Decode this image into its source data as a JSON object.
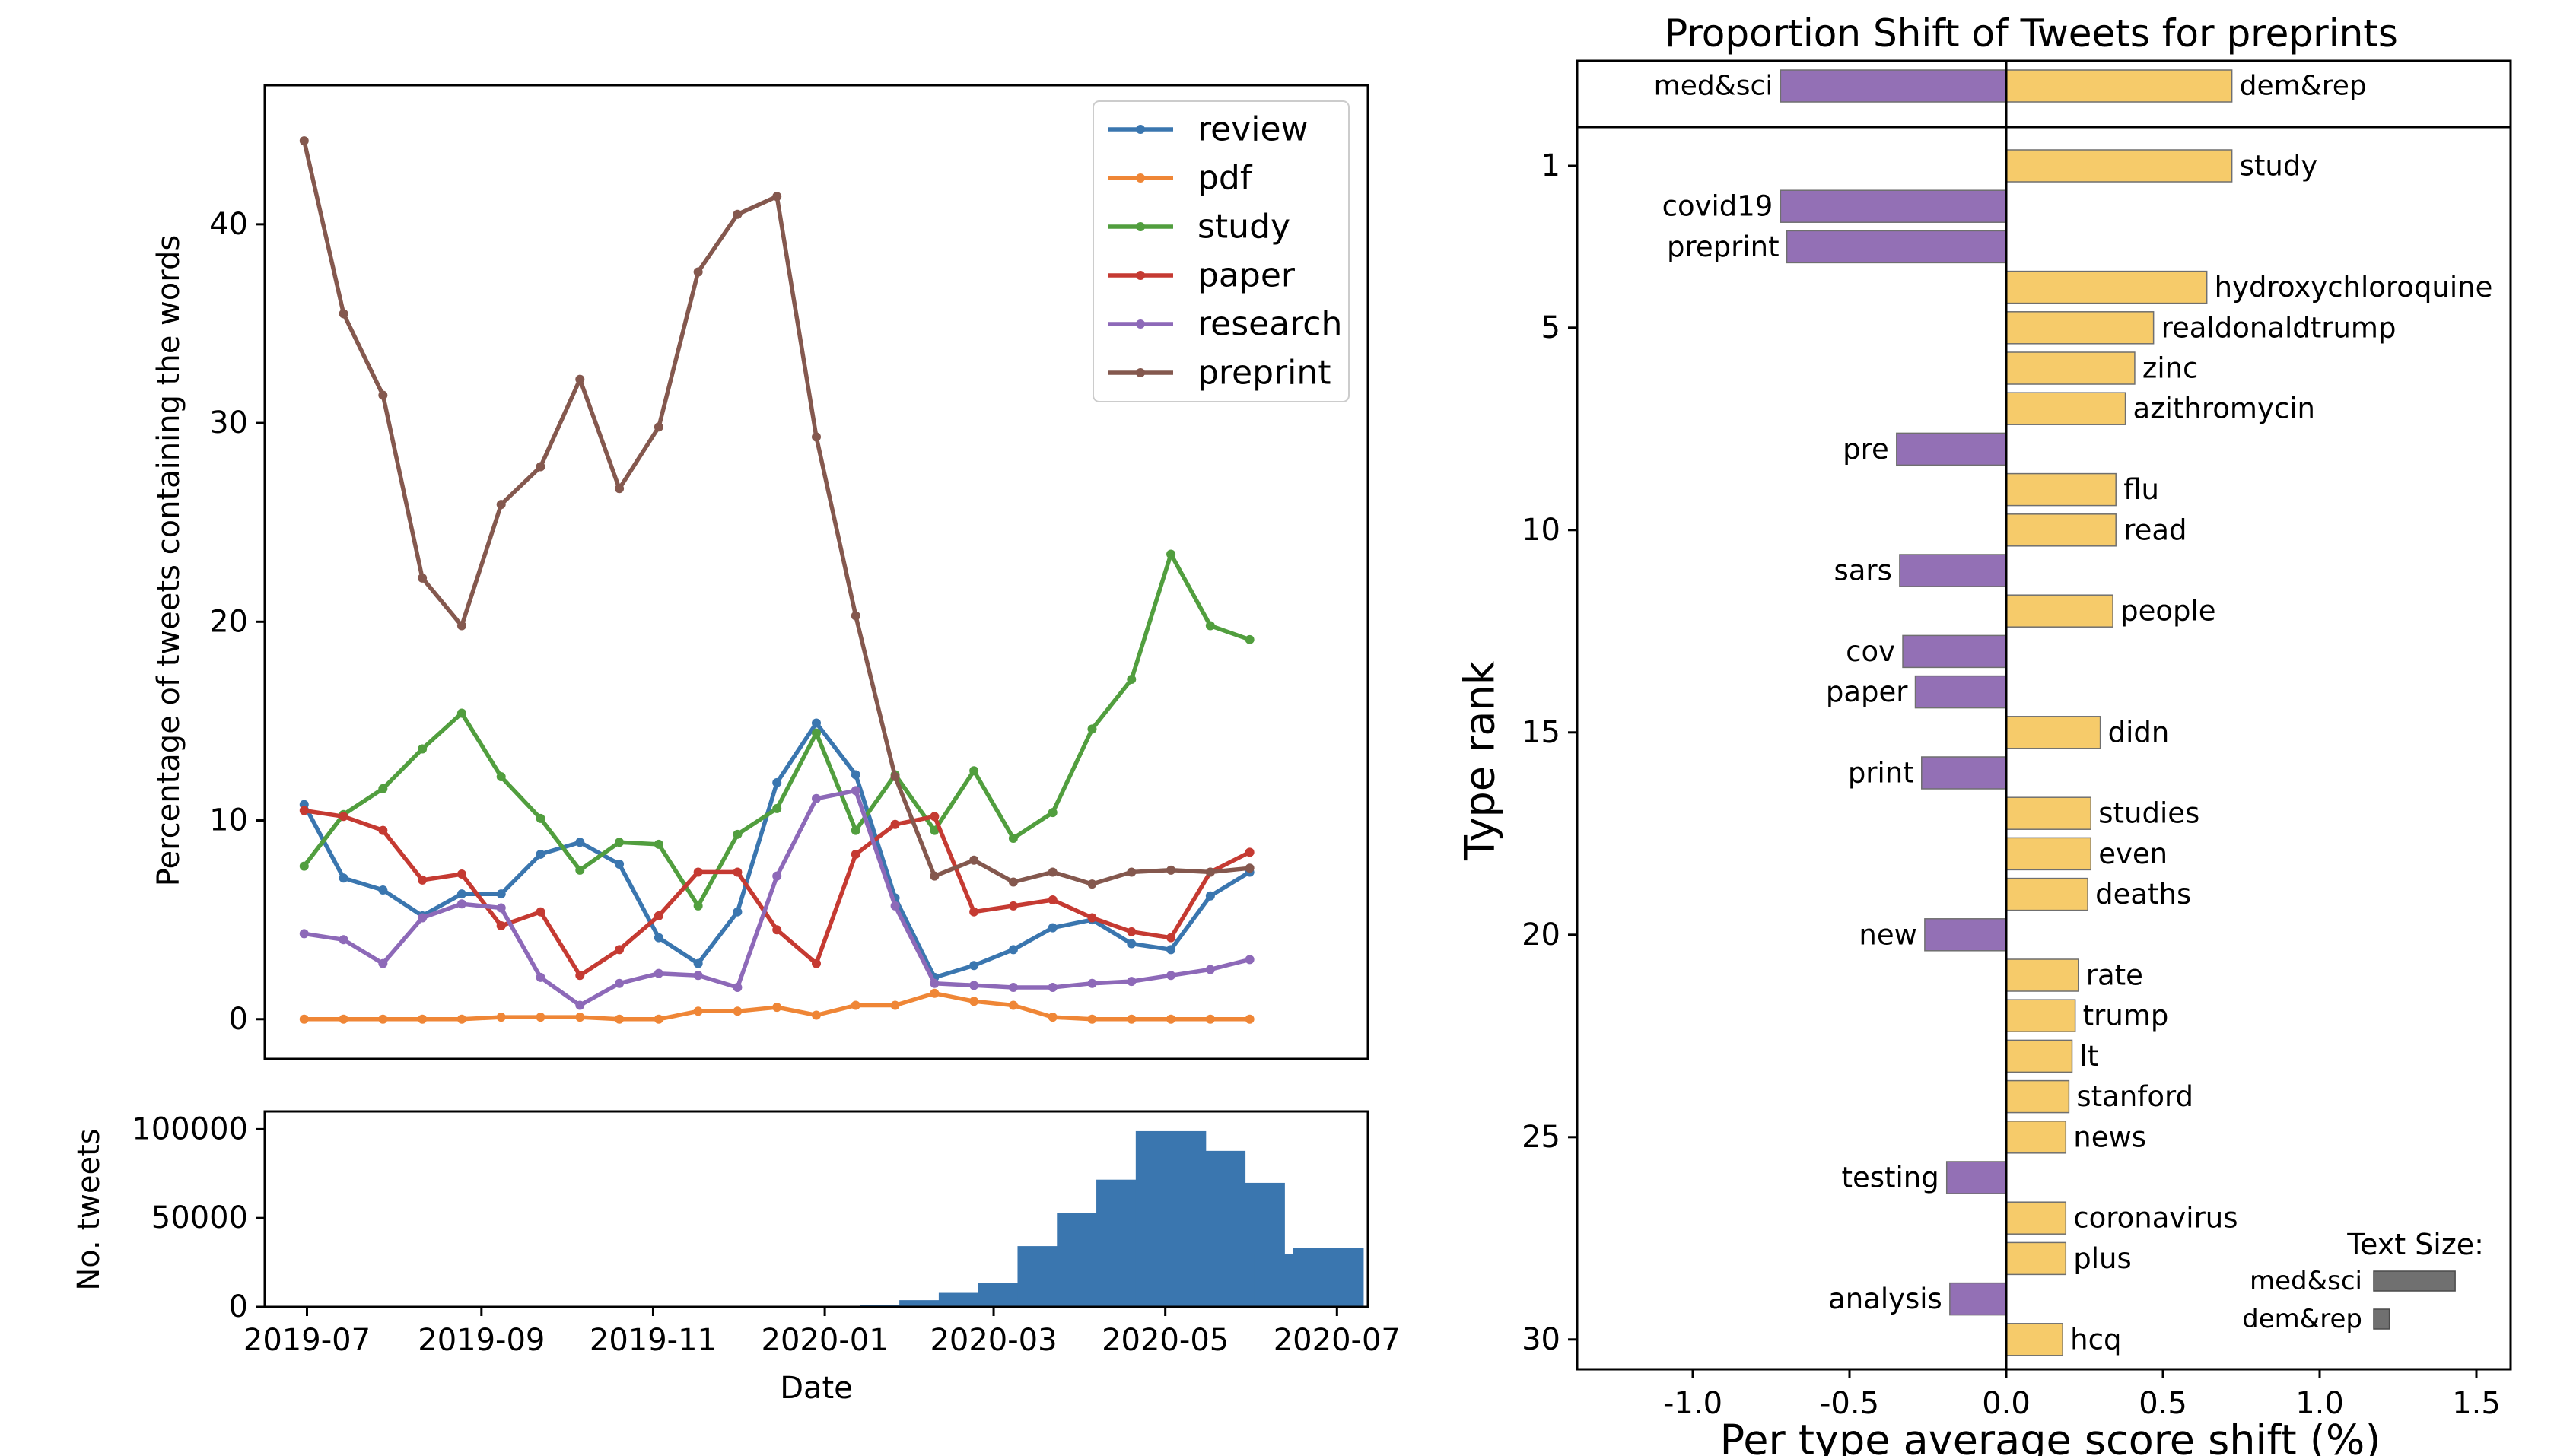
{
  "chart_data": [
    {
      "type": "line",
      "xlabel": "",
      "ylabel": "Percentage of tweets containing the words",
      "ylim": [
        -2,
        47
      ],
      "yticks": [
        0,
        10,
        20,
        30,
        40
      ],
      "grid": false,
      "legend_position": "top-right",
      "x": [
        "2019-06-30",
        "2019-07-14",
        "2019-07-28",
        "2019-08-11",
        "2019-08-25",
        "2019-09-08",
        "2019-09-22",
        "2019-10-06",
        "2019-10-20",
        "2019-11-03",
        "2019-11-17",
        "2019-12-01",
        "2019-12-15",
        "2019-12-29",
        "2020-01-12",
        "2020-01-26",
        "2020-02-09",
        "2020-02-23",
        "2020-03-08",
        "2020-03-22",
        "2020-04-05",
        "2020-04-19",
        "2020-05-03",
        "2020-05-17",
        "2020-05-31",
        "2020-06-14",
        "2020-06-28"
      ],
      "series": [
        {
          "name": "review",
          "color": "#3a76af",
          "values": [
            10.8,
            7.1,
            6.5,
            5.2,
            6.3,
            6.3,
            8.3,
            8.9,
            7.8,
            4.1,
            2.8,
            5.4,
            11.9,
            14.9,
            12.3,
            6.1,
            2.1,
            2.7,
            3.5,
            4.6,
            5.0,
            3.8,
            3.5,
            6.2,
            7.4,
            null,
            null
          ]
        },
        {
          "name": "pdf",
          "color": "#ef8636",
          "values": [
            0.0,
            0.0,
            0.0,
            0.0,
            0.0,
            0.1,
            0.1,
            0.1,
            0.0,
            0.0,
            0.4,
            0.4,
            0.6,
            0.2,
            0.7,
            0.7,
            1.3,
            0.9,
            0.7,
            0.1,
            0.0,
            0.0,
            0.0,
            0.0,
            0.0,
            null,
            null
          ]
        },
        {
          "name": "study",
          "color": "#519e3e",
          "values": [
            7.7,
            10.3,
            11.6,
            13.6,
            15.4,
            12.2,
            10.1,
            7.5,
            8.9,
            8.8,
            5.7,
            9.3,
            10.6,
            14.4,
            9.5,
            12.3,
            9.5,
            12.5,
            9.1,
            10.4,
            14.6,
            17.1,
            23.4,
            19.8,
            19.1,
            null,
            null
          ]
        },
        {
          "name": "paper",
          "color": "#c53a32",
          "values": [
            10.5,
            10.2,
            9.5,
            7.0,
            7.3,
            4.7,
            5.4,
            2.2,
            3.5,
            5.2,
            7.4,
            7.4,
            4.5,
            2.8,
            8.3,
            9.8,
            10.2,
            5.4,
            5.7,
            6.0,
            5.1,
            4.4,
            4.1,
            7.4,
            8.4,
            null,
            null
          ]
        },
        {
          "name": "research",
          "color": "#8d69b8",
          "values": [
            4.3,
            4.0,
            2.8,
            5.1,
            5.8,
            5.6,
            2.1,
            0.7,
            1.8,
            2.3,
            2.2,
            1.6,
            7.2,
            11.1,
            11.5,
            5.7,
            1.8,
            1.7,
            1.6,
            1.6,
            1.8,
            1.9,
            2.2,
            2.5,
            3.0,
            null,
            null
          ]
        },
        {
          "name": "preprint",
          "color": "#84584e",
          "values": [
            44.2,
            35.5,
            31.4,
            22.2,
            19.8,
            25.9,
            27.8,
            32.2,
            26.7,
            29.8,
            37.6,
            40.5,
            41.4,
            29.3,
            20.3,
            12.2,
            7.2,
            8.0,
            6.9,
            7.4,
            6.8,
            7.4,
            7.5,
            7.4,
            7.6,
            null,
            null
          ]
        }
      ]
    },
    {
      "type": "bar",
      "xlabel": "Date",
      "ylabel": "No. tweets",
      "ylim": [
        0,
        110000
      ],
      "yticks": [
        0,
        50000,
        100000
      ],
      "xtick_labels": [
        "2019-07",
        "2019-09",
        "2019-11",
        "2020-01",
        "2020-03",
        "2020-05",
        "2020-07"
      ],
      "color": "#3a76af",
      "x": [
        "2019-06-30",
        "2019-07-14",
        "2019-07-28",
        "2019-08-11",
        "2019-08-25",
        "2019-09-08",
        "2019-09-22",
        "2019-10-06",
        "2019-10-20",
        "2019-11-03",
        "2019-11-17",
        "2019-12-01",
        "2019-12-15",
        "2019-12-29",
        "2020-01-12",
        "2020-01-26",
        "2020-02-09",
        "2020-02-23",
        "2020-03-08",
        "2020-03-22",
        "2020-04-05",
        "2020-04-19",
        "2020-05-03",
        "2020-05-17",
        "2020-05-31",
        "2020-06-14",
        "2020-06-28"
      ],
      "values": [
        30,
        40,
        40,
        50,
        60,
        60,
        70,
        80,
        80,
        90,
        110,
        140,
        200,
        300,
        400,
        1000,
        3800,
        7900,
        13400,
        34200,
        52800,
        71600,
        98900,
        87800,
        69800,
        29600,
        33000
      ]
    },
    {
      "type": "bar",
      "orientation": "horizontal",
      "title": "Proportion Shift of Tweets for preprints",
      "xlabel": "Per type average score shift (%)",
      "ylabel": "Type rank",
      "xlim": [
        -1.4,
        1.6
      ],
      "xticks": [
        -1.0,
        -0.5,
        0.0,
        0.5,
        1.0,
        1.5
      ],
      "yticks": [
        1,
        5,
        10,
        15,
        20,
        25,
        30
      ],
      "summary": [
        {
          "label": "med&sci",
          "value": -0.72,
          "color": "#9370b5"
        },
        {
          "label": "dem&rep",
          "value": 0.72,
          "color": "#f6cb6a"
        }
      ],
      "bars": [
        {
          "rank": 1,
          "label": "study",
          "value": 0.72,
          "group": "dem&rep"
        },
        {
          "rank": 2,
          "label": "covid19",
          "value": -0.72,
          "group": "med&sci"
        },
        {
          "rank": 3,
          "label": "preprint",
          "value": -0.7,
          "group": "med&sci"
        },
        {
          "rank": 4,
          "label": "hydroxychloroquine",
          "value": 0.64,
          "group": "dem&rep"
        },
        {
          "rank": 5,
          "label": "realdonaldtrump",
          "value": 0.47,
          "group": "dem&rep"
        },
        {
          "rank": 6,
          "label": "zinc",
          "value": 0.41,
          "group": "dem&rep"
        },
        {
          "rank": 7,
          "label": "azithromycin",
          "value": 0.38,
          "group": "dem&rep"
        },
        {
          "rank": 8,
          "label": "pre",
          "value": -0.35,
          "group": "med&sci"
        },
        {
          "rank": 9,
          "label": "flu",
          "value": 0.35,
          "group": "dem&rep"
        },
        {
          "rank": 10,
          "label": "read",
          "value": 0.35,
          "group": "dem&rep"
        },
        {
          "rank": 11,
          "label": "sars",
          "value": -0.34,
          "group": "med&sci"
        },
        {
          "rank": 12,
          "label": "people",
          "value": 0.34,
          "group": "dem&rep"
        },
        {
          "rank": 13,
          "label": "cov",
          "value": -0.33,
          "group": "med&sci"
        },
        {
          "rank": 14,
          "label": "paper",
          "value": -0.29,
          "group": "med&sci"
        },
        {
          "rank": 15,
          "label": "didn",
          "value": 0.3,
          "group": "dem&rep"
        },
        {
          "rank": 16,
          "label": "print",
          "value": -0.27,
          "group": "med&sci"
        },
        {
          "rank": 17,
          "label": "studies",
          "value": 0.27,
          "group": "dem&rep"
        },
        {
          "rank": 18,
          "label": "even",
          "value": 0.27,
          "group": "dem&rep"
        },
        {
          "rank": 19,
          "label": "deaths",
          "value": 0.26,
          "group": "dem&rep"
        },
        {
          "rank": 20,
          "label": "new",
          "value": -0.26,
          "group": "med&sci"
        },
        {
          "rank": 21,
          "label": "rate",
          "value": 0.23,
          "group": "dem&rep"
        },
        {
          "rank": 22,
          "label": "trump",
          "value": 0.22,
          "group": "dem&rep"
        },
        {
          "rank": 23,
          "label": "lt",
          "value": 0.21,
          "group": "dem&rep"
        },
        {
          "rank": 24,
          "label": "stanford",
          "value": 0.2,
          "group": "dem&rep"
        },
        {
          "rank": 25,
          "label": "news",
          "value": 0.19,
          "group": "dem&rep"
        },
        {
          "rank": 26,
          "label": "testing",
          "value": -0.19,
          "group": "med&sci"
        },
        {
          "rank": 27,
          "label": "coronavirus",
          "value": 0.19,
          "group": "dem&rep"
        },
        {
          "rank": 28,
          "label": "plus",
          "value": 0.19,
          "group": "dem&rep"
        },
        {
          "rank": 29,
          "label": "analysis",
          "value": -0.18,
          "group": "med&sci"
        },
        {
          "rank": 30,
          "label": "hcq",
          "value": 0.18,
          "group": "dem&rep"
        }
      ],
      "text_size_legend": {
        "title": "Text Size:",
        "entries": [
          {
            "label": "med&sci",
            "value": 0.26
          },
          {
            "label": "dem&rep",
            "value": 0.05
          }
        ]
      }
    }
  ]
}
